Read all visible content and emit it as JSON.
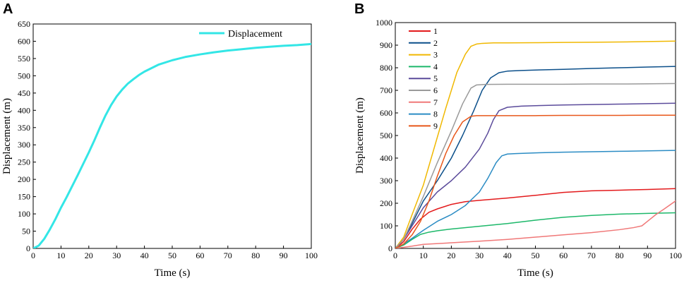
{
  "chart_data": [
    {
      "panel": "A",
      "type": "line",
      "xlabel": "Time (s)",
      "ylabel": "Displacement (m)",
      "xlim": [
        0,
        100
      ],
      "ylim": [
        0,
        650
      ],
      "xticks": [
        0,
        10,
        20,
        30,
        40,
        50,
        60,
        70,
        80,
        90,
        100
      ],
      "yticks": [
        0,
        50,
        100,
        150,
        200,
        250,
        300,
        350,
        400,
        450,
        500,
        550,
        600,
        650
      ],
      "legend_position": "top-right",
      "series": [
        {
          "name": "Displacement",
          "color": "#33e6e6",
          "x": [
            0,
            2,
            4,
            6,
            8,
            10,
            12,
            14,
            16,
            18,
            20,
            22,
            24,
            26,
            28,
            30,
            32,
            34,
            36,
            38,
            40,
            45,
            50,
            55,
            60,
            65,
            70,
            75,
            80,
            85,
            90,
            95,
            100
          ],
          "y": [
            0,
            8,
            28,
            55,
            85,
            118,
            148,
            180,
            212,
            245,
            278,
            313,
            350,
            385,
            415,
            440,
            460,
            477,
            490,
            502,
            512,
            532,
            545,
            555,
            562,
            568,
            573,
            577,
            581,
            584,
            587,
            589,
            592
          ]
        }
      ]
    },
    {
      "panel": "B",
      "type": "line",
      "xlabel": "Time (s)",
      "ylabel": "Displacement (m)",
      "xlim": [
        0,
        100
      ],
      "ylim": [
        0,
        1000
      ],
      "xticks": [
        0,
        10,
        20,
        30,
        40,
        50,
        60,
        70,
        80,
        90,
        100
      ],
      "yticks": [
        0,
        100,
        200,
        300,
        400,
        500,
        600,
        700,
        800,
        900,
        1000
      ],
      "legend_position": "top-left",
      "series": [
        {
          "name": "1",
          "color": "#e31a1c",
          "x": [
            0,
            3,
            6,
            9,
            12,
            15,
            20,
            25,
            30,
            40,
            50,
            60,
            70,
            80,
            90,
            100
          ],
          "y": [
            0,
            30,
            85,
            130,
            160,
            175,
            195,
            207,
            213,
            223,
            235,
            248,
            255,
            258,
            261,
            265
          ]
        },
        {
          "name": "2",
          "color": "#0b4f8a",
          "x": [
            0,
            3,
            6,
            10,
            15,
            20,
            24,
            28,
            31,
            34,
            37,
            40,
            45,
            50,
            60,
            70,
            80,
            90,
            100
          ],
          "y": [
            0,
            40,
            110,
            210,
            300,
            400,
            500,
            610,
            700,
            755,
            778,
            785,
            788,
            790,
            793,
            797,
            800,
            803,
            806
          ]
        },
        {
          "name": "3",
          "color": "#f0b800",
          "x": [
            0,
            3,
            6,
            10,
            14,
            18,
            22,
            25,
            27,
            29,
            31,
            35,
            40,
            50,
            60,
            70,
            80,
            90,
            100
          ],
          "y": [
            0,
            50,
            150,
            280,
            450,
            620,
            780,
            860,
            895,
            905,
            908,
            910,
            910,
            911,
            912,
            913,
            914,
            916,
            918
          ]
        },
        {
          "name": "4",
          "color": "#1db86a",
          "x": [
            0,
            3,
            6,
            9,
            12,
            15,
            20,
            30,
            40,
            50,
            60,
            70,
            80,
            90,
            100
          ],
          "y": [
            0,
            15,
            40,
            62,
            72,
            78,
            86,
            98,
            110,
            125,
            138,
            146,
            152,
            155,
            158
          ]
        },
        {
          "name": "5",
          "color": "#5b4b9b",
          "x": [
            0,
            3,
            6,
            10,
            15,
            20,
            25,
            30,
            33,
            35,
            37,
            40,
            45,
            50,
            60,
            70,
            80,
            90,
            100
          ],
          "y": [
            0,
            40,
            100,
            180,
            250,
            300,
            360,
            440,
            510,
            570,
            610,
            625,
            630,
            632,
            635,
            637,
            639,
            641,
            643
          ]
        },
        {
          "name": "6",
          "color": "#9a9a9a",
          "x": [
            0,
            3,
            6,
            10,
            15,
            20,
            24,
            27,
            29,
            32,
            40,
            50,
            60,
            70,
            80,
            90,
            100
          ],
          "y": [
            0,
            40,
            120,
            230,
            380,
            520,
            640,
            710,
            724,
            726,
            727,
            727,
            727,
            728,
            728,
            729,
            730
          ]
        },
        {
          "name": "7",
          "color": "#f07878",
          "x": [
            0,
            3,
            6,
            10,
            20,
            30,
            40,
            50,
            60,
            70,
            80,
            85,
            88,
            90,
            93,
            96,
            100
          ],
          "y": [
            0,
            5,
            10,
            18,
            25,
            32,
            40,
            50,
            60,
            70,
            83,
            92,
            100,
            120,
            150,
            175,
            210
          ]
        },
        {
          "name": "8",
          "color": "#2b8cc4",
          "x": [
            0,
            3,
            6,
            10,
            15,
            20,
            25,
            30,
            33,
            36,
            38,
            40,
            43,
            50,
            60,
            70,
            80,
            90,
            100
          ],
          "y": [
            0,
            20,
            45,
            80,
            120,
            150,
            190,
            250,
            310,
            380,
            410,
            418,
            420,
            423,
            426,
            428,
            430,
            432,
            434
          ]
        },
        {
          "name": "9",
          "color": "#e8571a",
          "x": [
            0,
            3,
            6,
            9,
            12,
            15,
            18,
            21,
            24,
            27,
            29,
            32,
            40,
            50,
            60,
            70,
            80,
            90,
            100
          ],
          "y": [
            0,
            20,
            60,
            120,
            210,
            320,
            420,
            500,
            560,
            585,
            588,
            588,
            588,
            588,
            589,
            589,
            589,
            590,
            590
          ]
        }
      ]
    }
  ]
}
